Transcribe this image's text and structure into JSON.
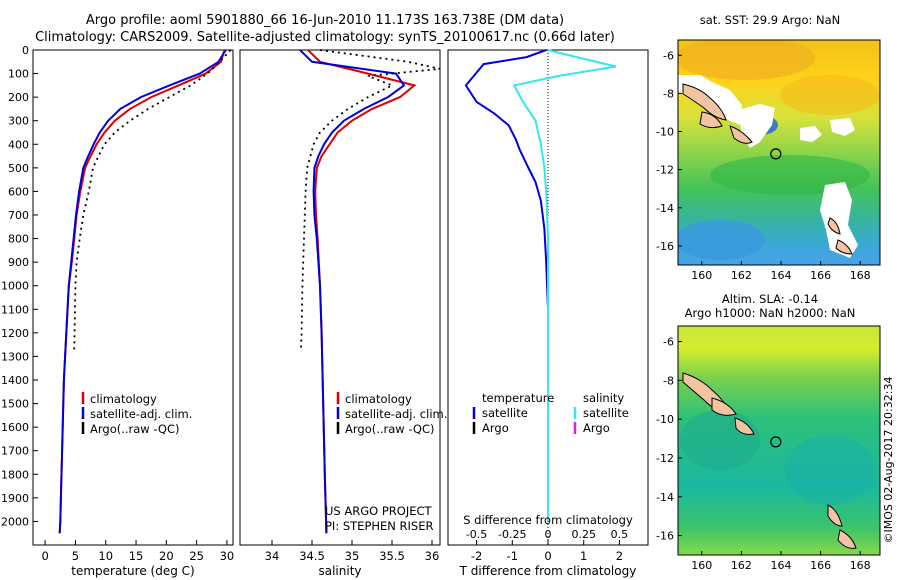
{
  "header": {
    "line1": "Argo profile: aoml 5901880_66 16-Jun-2010 11.173S 163.738E (DM data)",
    "line2": "Climatology: CARS2009. Satellite-adjusted climatology: synTS_20100617.nc (0.66d later)"
  },
  "colors": {
    "climatology": "#dd0000",
    "satellite": "#0000dd",
    "argo": "#000000",
    "satellite_s": "#33e6f0",
    "argo_s": "#dd22dd"
  },
  "chart_data": [
    {
      "type": "line",
      "id": "temperature",
      "xlabel": "temperature (deg C)",
      "xlim": [
        -2,
        31
      ],
      "ylim": [
        2100,
        0
      ],
      "xticks": [
        0,
        5,
        10,
        15,
        20,
        25,
        30
      ],
      "yticks": [
        0,
        100,
        200,
        300,
        400,
        500,
        600,
        700,
        800,
        900,
        1000,
        1100,
        1200,
        1300,
        1400,
        1500,
        1600,
        1700,
        1800,
        1900,
        2000
      ],
      "series": [
        {
          "name": "climatology",
          "role": "climatology",
          "x": [
            29.6,
            29.0,
            26.5,
            22.0,
            17.5,
            14.0,
            11.5,
            9.8,
            8.5,
            7.5,
            6.6,
            5.8,
            5.2,
            4.8,
            4.4,
            3.9,
            3.5,
            3.1,
            2.9,
            2.7,
            2.5,
            2.4
          ],
          "y": [
            0,
            50,
            100,
            150,
            200,
            250,
            300,
            350,
            400,
            450,
            500,
            600,
            700,
            800,
            900,
            1000,
            1200,
            1400,
            1600,
            1800,
            2000,
            2050
          ]
        },
        {
          "name": "satellite-adj. clim.",
          "role": "satellite",
          "x": [
            29.8,
            28.6,
            25.5,
            20.5,
            15.8,
            12.4,
            10.4,
            9.0,
            8.0,
            7.1,
            6.3,
            5.6,
            5.1,
            4.7,
            4.3,
            3.9,
            3.5,
            3.1,
            2.9,
            2.7,
            2.5,
            2.4
          ],
          "y": [
            0,
            50,
            100,
            150,
            200,
            250,
            300,
            350,
            400,
            450,
            500,
            600,
            700,
            800,
            900,
            1000,
            1200,
            1400,
            1600,
            1800,
            2000,
            2050
          ]
        },
        {
          "name": "Argo(..raw -QC)",
          "role": "argo",
          "x": [
            30.6,
            28.8,
            26.8,
            24.0,
            20.5,
            17.0,
            14.0,
            11.5,
            9.8,
            8.8,
            7.9,
            7.2,
            6.3,
            5.7,
            5.2,
            5.0,
            4.8
          ],
          "y": [
            0,
            50,
            100,
            150,
            200,
            250,
            300,
            350,
            400,
            450,
            500,
            600,
            700,
            800,
            900,
            1000,
            1280
          ]
        }
      ],
      "legend": [
        "climatology",
        "satellite-adj. clim.",
        "Argo(..raw -QC)"
      ]
    },
    {
      "type": "line",
      "id": "salinity",
      "xlabel": "salinity",
      "xlim": [
        33.6,
        36.1
      ],
      "ylim": [
        2100,
        0
      ],
      "xticks": [
        34,
        34.5,
        35,
        35.5,
        36
      ],
      "series": [
        {
          "name": "climatology",
          "role": "climatology",
          "x": [
            34.45,
            34.6,
            35.2,
            35.78,
            35.6,
            35.25,
            35.0,
            34.82,
            34.72,
            34.62,
            34.56,
            34.54,
            34.55,
            34.57,
            34.6,
            34.62,
            34.64,
            34.66,
            34.68
          ],
          "y": [
            0,
            50,
            100,
            150,
            200,
            250,
            300,
            350,
            400,
            450,
            500,
            600,
            700,
            800,
            1000,
            1200,
            1500,
            1800,
            2050
          ]
        },
        {
          "name": "satellite-adj. clim.",
          "role": "satellite",
          "x": [
            34.35,
            34.5,
            35.55,
            35.65,
            35.45,
            35.15,
            34.9,
            34.75,
            34.65,
            34.58,
            34.53,
            34.52,
            34.53,
            34.56,
            34.6,
            34.62,
            34.64,
            34.66,
            34.68
          ],
          "y": [
            0,
            50,
            100,
            150,
            200,
            250,
            300,
            350,
            400,
            450,
            500,
            600,
            700,
            800,
            1000,
            1200,
            1500,
            1800,
            2050
          ]
        },
        {
          "name": "Argo(..raw -QC)",
          "role": "argo",
          "x": [
            34.6,
            35.7,
            36.1,
            35.2,
            35.5,
            35.2,
            34.95,
            34.75,
            34.6,
            34.52,
            34.48,
            34.44,
            34.42,
            34.41,
            34.4,
            34.38,
            34.37,
            34.36
          ],
          "y": [
            0,
            50,
            80,
            110,
            150,
            200,
            250,
            300,
            350,
            400,
            450,
            500,
            600,
            700,
            800,
            1000,
            1200,
            1280
          ]
        }
      ],
      "legend": [
        "climatology",
        "satellite-adj. clim.",
        "Argo(..raw -QC)"
      ],
      "annotations": [
        "US ARGO PROJECT",
        "PI: STEPHEN RISER"
      ]
    },
    {
      "type": "line",
      "id": "difference",
      "xlabel": "T difference from climatology",
      "xlabel_top": "S difference from climatology",
      "xlim": [
        -2.8,
        2.8
      ],
      "ylim": [
        2100,
        0
      ],
      "xticks": [
        -2,
        -1,
        0,
        1,
        2
      ],
      "xticks_s": [
        "-0.5",
        "-0.25",
        "0",
        "0.25",
        "0.5"
      ],
      "series": [
        {
          "name": "temperature satellite",
          "role": "satellite",
          "x": [
            -0.05,
            -0.6,
            -1.8,
            -2.3,
            -2.0,
            -1.5,
            -1.1,
            -0.9,
            -0.8,
            -0.55,
            -0.35,
            -0.2,
            -0.1,
            -0.05,
            0.0,
            0.0,
            0.0,
            0.0
          ],
          "y": [
            0,
            30,
            60,
            150,
            220,
            270,
            320,
            380,
            420,
            500,
            560,
            640,
            760,
            900,
            1100,
            1400,
            1700,
            2000
          ]
        },
        {
          "name": "salinity satellite",
          "role": "satellite_s",
          "x": [
            0.0,
            0.8,
            1.9,
            0.3,
            -0.95,
            -0.7,
            -0.35,
            -0.2,
            -0.1,
            -0.05,
            0.0,
            0.0,
            0.0,
            0.0
          ],
          "y": [
            0,
            30,
            70,
            110,
            150,
            220,
            300,
            400,
            500,
            600,
            800,
            1200,
            1700,
            2000
          ]
        }
      ],
      "legend": {
        "temperature": "temperature",
        "salinity": "salinity",
        "satellite": "satellite",
        "argo": "Argo"
      }
    }
  ],
  "maps": {
    "sst_title": "sat. SST: 29.9  Argo: NaN",
    "sla_title_1": "Altim. SLA: -0.14",
    "sla_title_2": "Argo h1000: NaN  h2000: NaN",
    "xticks": [
      160,
      162,
      164,
      166,
      168
    ],
    "yticks": [
      -6,
      -8,
      -10,
      -12,
      -14,
      -16
    ],
    "xlim": [
      158.8,
      169.0
    ],
    "ylim": [
      -17.0,
      -5.2
    ],
    "profile_location": {
      "lon": 163.738,
      "lat": -11.173
    }
  },
  "footer": {
    "stamp": "©IMOS 02-Aug-2017 20:32:34"
  }
}
